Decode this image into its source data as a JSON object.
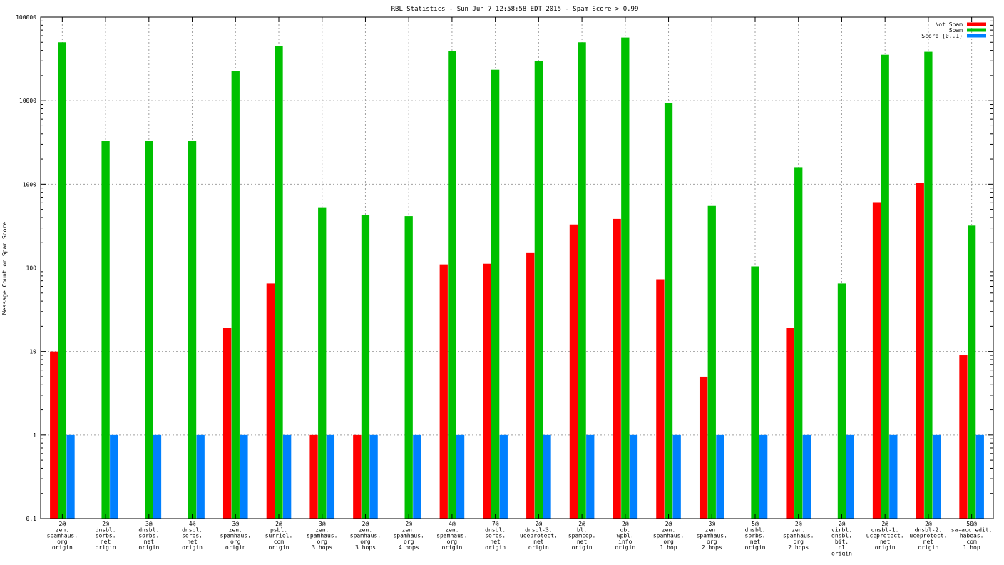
{
  "chart_data": {
    "type": "bar",
    "title": "RBL Statistics - Sun Jun  7 12:58:58 EDT 2015 - Spam Score > 0.99",
    "xlabel": "",
    "ylabel": "Message Count or Spam Score",
    "yscale": "log",
    "ylim": [
      0.1,
      100000
    ],
    "yticks": [
      "0.1",
      "1",
      "10",
      "100",
      "1000",
      "10000",
      "100000"
    ],
    "grid": true,
    "legend_position": "top-right",
    "categories": [
      [
        "2@",
        "zen.",
        "spamhaus.",
        "org",
        "origin"
      ],
      [
        "2@",
        "dnsbl.",
        "sorbs.",
        "net",
        "origin"
      ],
      [
        "3@",
        "dnsbl.",
        "sorbs.",
        "net",
        "origin"
      ],
      [
        "4@",
        "dnsbl.",
        "sorbs.",
        "net",
        "origin"
      ],
      [
        "3@",
        "zen.",
        "spamhaus.",
        "org",
        "origin"
      ],
      [
        "2@",
        "psbl.",
        "surriel.",
        "com",
        "origin"
      ],
      [
        "3@",
        "zen.",
        "spamhaus.",
        "org",
        "3 hops"
      ],
      [
        "2@",
        "zen.",
        "spamhaus.",
        "org",
        "3 hops"
      ],
      [
        "2@",
        "zen.",
        "spamhaus.",
        "org",
        "4 hops"
      ],
      [
        "4@",
        "zen.",
        "spamhaus.",
        "org",
        "origin"
      ],
      [
        "7@",
        "dnsbl.",
        "sorbs.",
        "net",
        "origin"
      ],
      [
        "2@",
        "dnsbl-3.",
        "uceprotect.",
        "net",
        "origin"
      ],
      [
        "2@",
        "bl.",
        "spamcop.",
        "net",
        "origin"
      ],
      [
        "2@",
        "db.",
        "wpbl.",
        "info",
        "origin"
      ],
      [
        "2@",
        "zen.",
        "spamhaus.",
        "org",
        "1 hop"
      ],
      [
        "3@",
        "zen.",
        "spamhaus.",
        "org",
        "2 hops"
      ],
      [
        "5@",
        "dnsbl.",
        "sorbs.",
        "net",
        "origin"
      ],
      [
        "2@",
        "zen.",
        "spamhaus.",
        "org",
        "2 hops"
      ],
      [
        "2@",
        "virbl.",
        "dnsbl.",
        "bit.",
        "nl",
        "origin"
      ],
      [
        "2@",
        "dnsbl-1.",
        "uceprotect.",
        "net",
        "origin"
      ],
      [
        "2@",
        "dnsbl-2.",
        "uceprotect.",
        "net",
        "origin"
      ],
      [
        "50@",
        "sa-accredit.",
        "habeas.",
        "com",
        "1 hop"
      ]
    ],
    "series": [
      {
        "name": "Not Spam",
        "color": "#ff0000",
        "values": [
          10,
          null,
          null,
          null,
          19,
          65,
          1,
          1,
          null,
          110,
          112,
          153,
          330,
          385,
          73,
          5,
          null,
          19,
          null,
          610,
          1040,
          9
        ]
      },
      {
        "name": "Spam",
        "color": "#00c000",
        "values": [
          50000,
          3300,
          3300,
          3300,
          22500,
          45000,
          530,
          425,
          415,
          39500,
          23500,
          30000,
          50000,
          57000,
          9300,
          550,
          104,
          1600,
          65,
          35500,
          38500,
          320
        ]
      },
      {
        "name": "Score (0..1)",
        "color": "#0080ff",
        "values": [
          1,
          1,
          1,
          1,
          1,
          1,
          1,
          1,
          1,
          1,
          1,
          1,
          1,
          1,
          1,
          1,
          1,
          1,
          1,
          1,
          1,
          1
        ]
      }
    ]
  }
}
